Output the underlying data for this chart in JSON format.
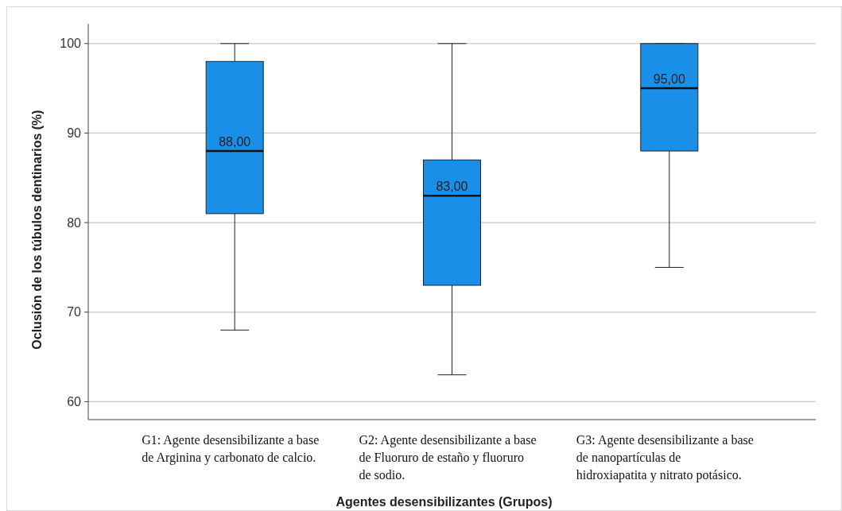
{
  "chart_data": {
    "type": "box",
    "xlabel": "Agentes desensibilizantes (Grupos)",
    "ylabel": "Oclusión de los túbulos dentinarios (%)",
    "categories": [
      "G1: Agente desensibilizante a base de Arginina y carbonato de calcio.",
      "G2: Agente desensibilizante a base de Fluoruro de estaño y fluoruro de sodio.",
      "G3: Agente desensibilizante a base de nanopartículas de hidroxiapatita y nitrato potásico."
    ],
    "boxes": [
      {
        "low": 68,
        "q1": 81,
        "median": 88,
        "q3": 98,
        "high": 100
      },
      {
        "low": 63,
        "q1": 73,
        "median": 83,
        "q3": 87,
        "high": 100
      },
      {
        "low": 75,
        "q1": 88,
        "median": 95,
        "q3": 100,
        "high": 100
      }
    ],
    "color": "#1a8fe8",
    "ylim": [
      58,
      102.2
    ],
    "yticks": [
      60,
      70,
      80,
      90,
      100
    ],
    "grid": "y",
    "annotations": [
      {
        "text": "88,00",
        "x": "G1: Agente desensibilizante a base de Arginina y carbonato de calcio.",
        "y": 88
      },
      {
        "text": "83,00",
        "x": "G2: Agente desensibilizante a base de Fluoruro de estaño y fluoruro de sodio.",
        "y": 83
      },
      {
        "text": "95,00",
        "x": "G3: Agente desensibilizante a base de nanopartículas de hidroxiapatita y nitrato potásico.",
        "y": 95
      }
    ]
  }
}
